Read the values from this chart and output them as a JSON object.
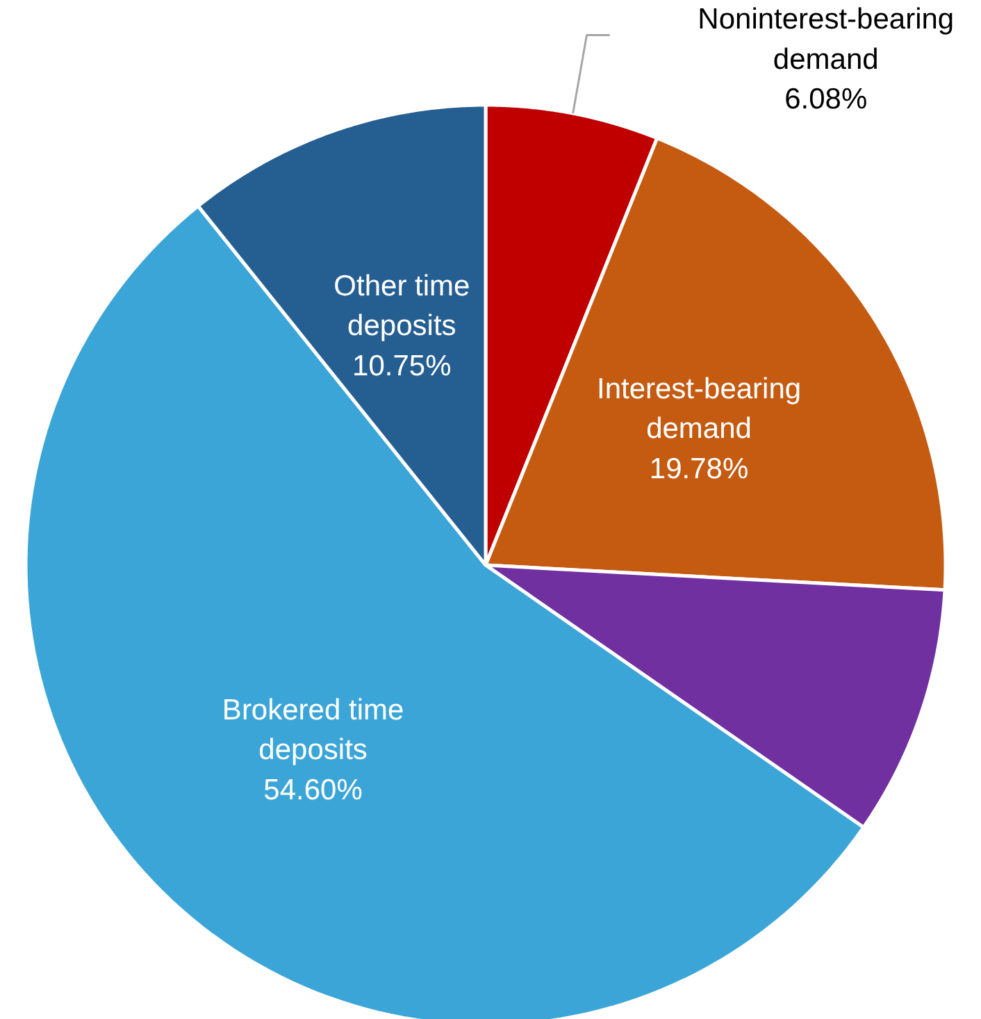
{
  "chart_data": {
    "type": "pie",
    "categories": [
      "Noninterest-bearing demand",
      "Interest-bearing demand",
      null,
      "Brokered time deposits",
      "Other time deposits"
    ],
    "values": [
      6.08,
      19.78,
      8.79,
      54.6,
      10.75
    ],
    "value_labels": [
      "6.08%",
      "19.78%",
      null,
      "54.60%",
      "10.75%"
    ],
    "colors": [
      "#c00000",
      "#c55a11",
      "#7030a0",
      "#3ca5d8",
      "#255e91"
    ],
    "legend": false
  }
}
